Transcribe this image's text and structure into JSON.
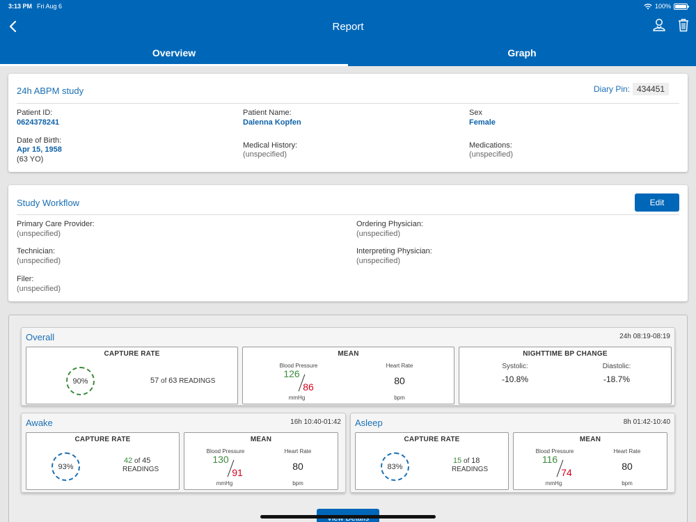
{
  "status": {
    "time": "3:13 PM",
    "date": "Fri Aug 6",
    "battery": "100%"
  },
  "nav": {
    "title": "Report"
  },
  "tabs": [
    {
      "label": "Overview"
    },
    {
      "label": "Graph"
    }
  ],
  "study": {
    "title": "24h ABPM study",
    "diary_pin_label": "Diary Pin:",
    "diary_pin": "434451",
    "patient_id_label": "Patient ID:",
    "patient_id": "0624378241",
    "patient_name_label": "Patient Name:",
    "patient_name": "Dalenna Kopfen",
    "sex_label": "Sex",
    "sex": "Female",
    "dob_label": "Date of Birth:",
    "dob": "Apr 15, 1958",
    "age": "(63 YO)",
    "medical_history_label": "Medical History:",
    "medical_history": "(unspecified)",
    "medications_label": "Medications:",
    "medications": "(unspecified)"
  },
  "workflow": {
    "title": "Study Workflow",
    "edit_label": "Edit",
    "primary_care_label": "Primary Care Provider:",
    "primary_care": "(unspecified)",
    "ordering_label": "Ordering Physician:",
    "ordering": "(unspecified)",
    "technician_label": "Technician:",
    "technician": "(unspecified)",
    "interpreting_label": "Interpreting Physician:",
    "interpreting": "(unspecified)",
    "filer_label": "Filer:",
    "filer": "(unspecified)"
  },
  "overall": {
    "title": "Overall",
    "range": "24h  08:19-08:19",
    "capture_head": "CAPTURE RATE",
    "capture_pct": "90%",
    "readings_num": "57",
    "readings_of": "of",
    "readings_total": "63",
    "readings_label": "READINGS",
    "mean_head": "MEAN",
    "bp_label": "Blood Pressure",
    "hr_label": "Heart Rate",
    "systolic": "126",
    "diastolic": "86",
    "bp_unit": "mmHg",
    "hr": "80",
    "hr_unit": "bpm",
    "night_head": "NIGHTTIME BP CHANGE",
    "sys_label": "Systolic:",
    "sys_change": "-10.8%",
    "dia_label": "Diastolic:",
    "dia_change": "-18.7%"
  },
  "awake": {
    "title": "Awake",
    "range": "16h  10:40-01:42",
    "capture_head": "CAPTURE RATE",
    "capture_pct": "93%",
    "readings_num": "42",
    "readings_of": "of",
    "readings_total": "45",
    "readings_label": "READINGS",
    "mean_head": "MEAN",
    "bp_label": "Blood Pressure",
    "hr_label": "Heart Rate",
    "systolic": "130",
    "diastolic": "91",
    "bp_unit": "mmHg",
    "hr": "80",
    "hr_unit": "bpm"
  },
  "asleep": {
    "title": "Asleep",
    "range": "8h  01:42-10:40",
    "capture_head": "CAPTURE RATE",
    "capture_pct": "83%",
    "readings_num": "15",
    "readings_of": "of",
    "readings_total": "18",
    "readings_label": "READINGS",
    "mean_head": "MEAN",
    "bp_label": "Blood Pressure",
    "hr_label": "Heart Rate",
    "systolic": "116",
    "diastolic": "74",
    "bp_unit": "mmHg",
    "hr": "80",
    "hr_unit": "bpm"
  },
  "view_details_label": "View Details",
  "colors": {
    "brand": "#0067b8",
    "good": "#3b8a3b",
    "alert": "#d0021b"
  }
}
